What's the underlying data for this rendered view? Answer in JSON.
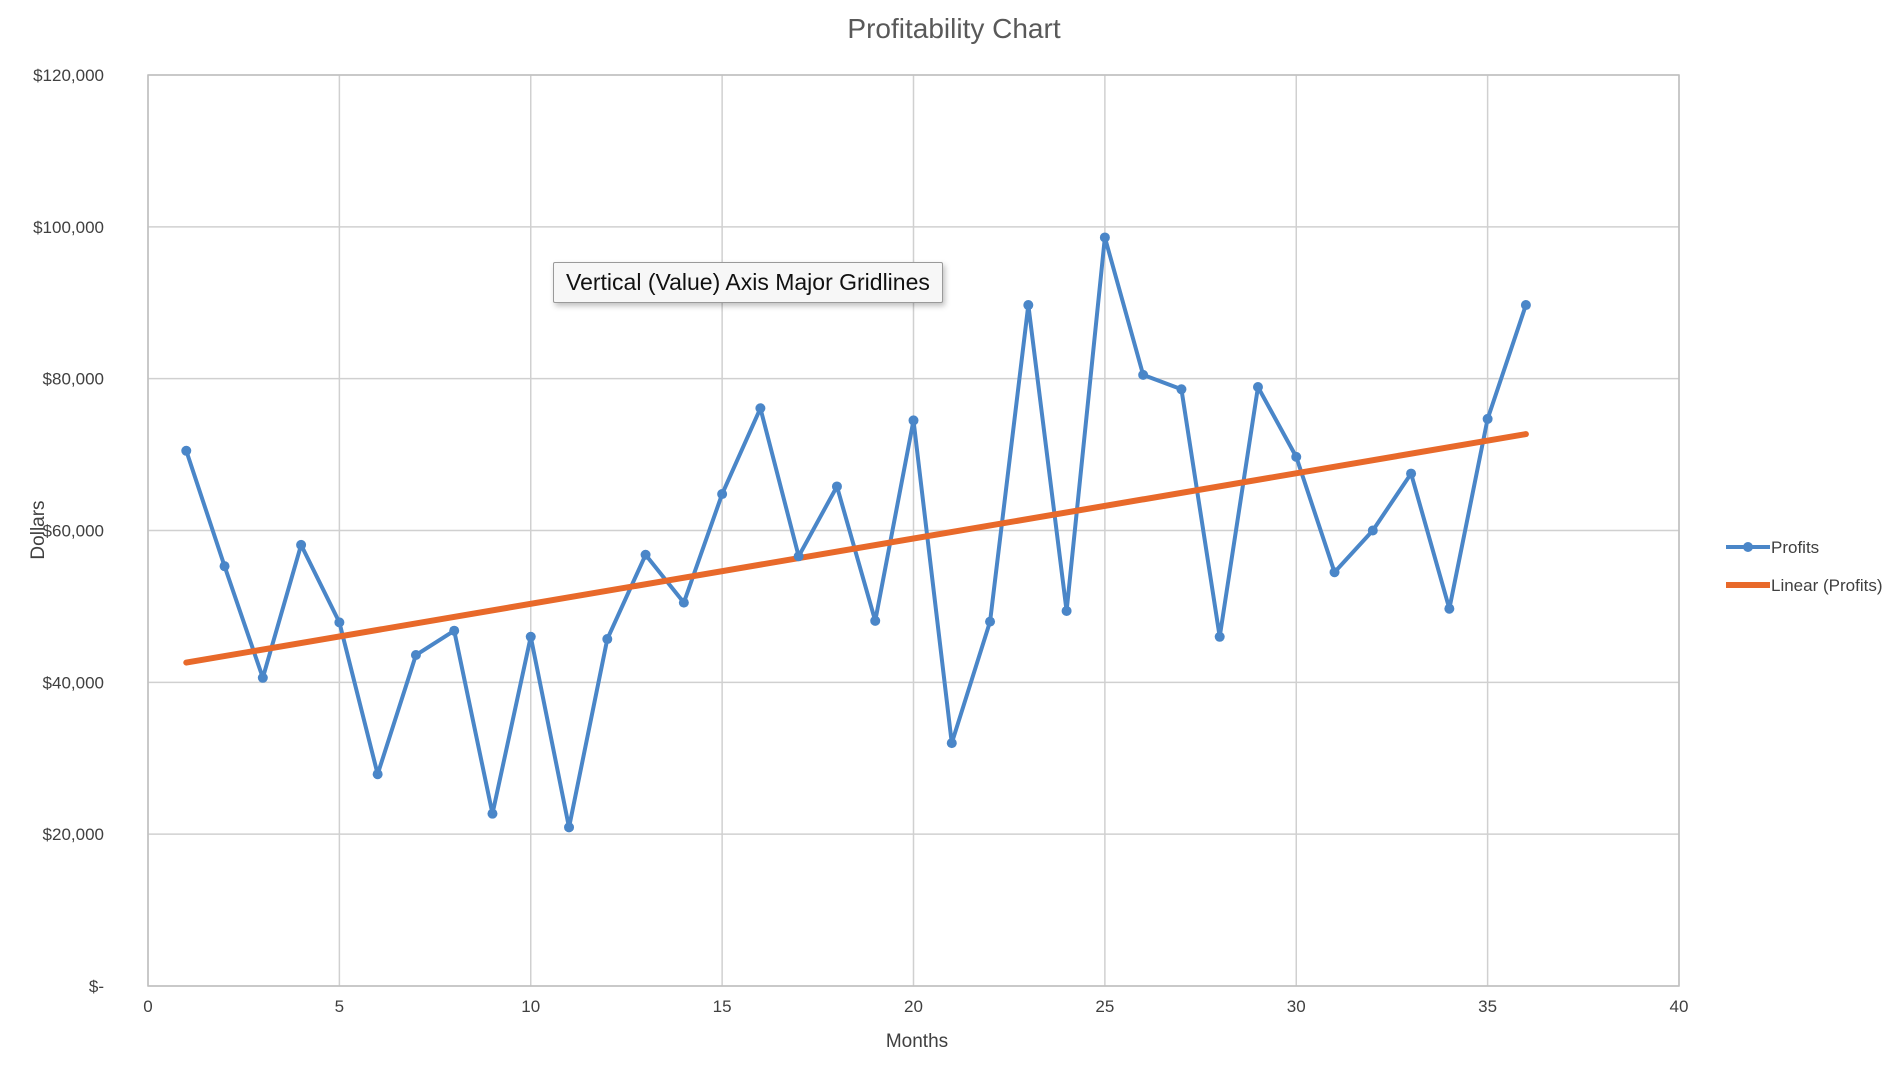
{
  "chart_data": {
    "type": "line",
    "title": "Profitability Chart",
    "xlabel": "Months",
    "ylabel": "Dollars",
    "xlim": [
      0,
      40
    ],
    "ylim": [
      0,
      120000
    ],
    "x_ticks": [
      0,
      5,
      10,
      15,
      20,
      25,
      30,
      35,
      40
    ],
    "x_tick_labels": [
      "0",
      "5",
      "10",
      "15",
      "20",
      "25",
      "30",
      "35",
      "40"
    ],
    "y_ticks": [
      0,
      20000,
      40000,
      60000,
      80000,
      100000,
      120000
    ],
    "y_tick_labels": [
      "$-",
      "$20,000",
      "$40,000",
      "$60,000",
      "$80,000",
      "$100,000",
      "$120,000"
    ],
    "grid": true,
    "legend_position": "right",
    "series": [
      {
        "name": "Profits",
        "color": "#4a86c8",
        "markers": true,
        "x": [
          1,
          2,
          3,
          4,
          5,
          6,
          7,
          8,
          9,
          10,
          11,
          12,
          13,
          14,
          15,
          16,
          17,
          18,
          19,
          20,
          21,
          22,
          23,
          24,
          25,
          26,
          27,
          28,
          29,
          30,
          31,
          32,
          33,
          34,
          35,
          36
        ],
        "y": [
          70500,
          55300,
          40600,
          58100,
          47900,
          27900,
          43600,
          46800,
          22700,
          46000,
          20900,
          45700,
          56800,
          50500,
          64800,
          76100,
          56600,
          65800,
          48100,
          74500,
          32000,
          48000,
          89700,
          49400,
          98600,
          80500,
          78600,
          46000,
          78900,
          69700,
          54500,
          60000,
          67500,
          49700,
          74700,
          89700
        ]
      },
      {
        "name": "Linear  (Profits)",
        "color": "#e8692a",
        "markers": false,
        "trendline": "linear",
        "x": [
          1,
          36
        ],
        "y": [
          42600,
          72700
        ]
      }
    ]
  },
  "tooltip": {
    "text": "Vertical (Value) Axis Major Gridlines"
  }
}
